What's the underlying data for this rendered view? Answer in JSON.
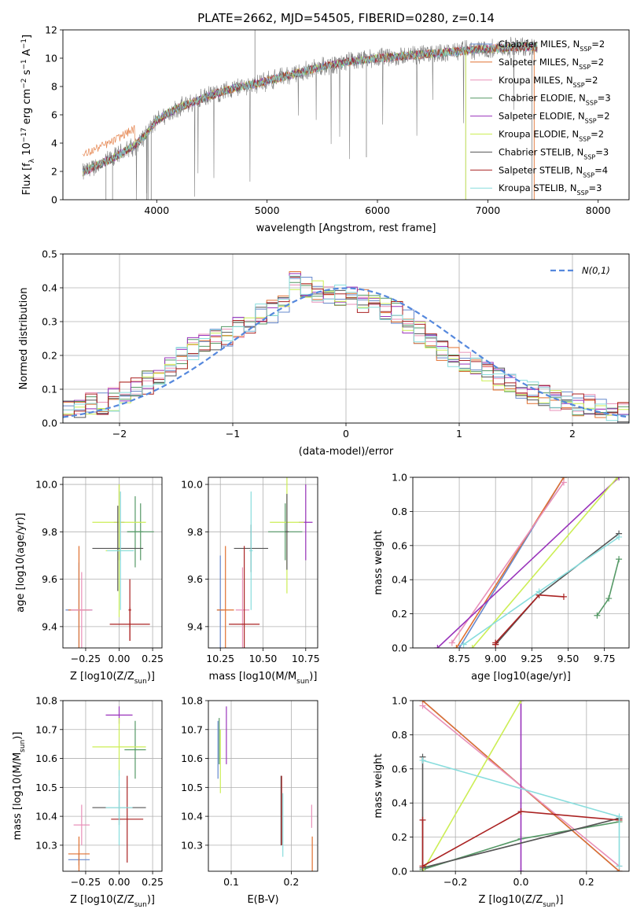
{
  "figure_title": "PLATE=2662, MJD=54505, FIBERID=0280, z=0.14",
  "model_colors": [
    "#6688cc",
    "#e07030",
    "#e890b8",
    "#559966",
    "#9933bb",
    "#ccee55",
    "#555555",
    "#aa2222",
    "#88dddd"
  ],
  "legend_labels": [
    "Chabrier MILES, N_SSP=2",
    "Salpeter MILES, N_SSP=2",
    "Kroupa MILES, N_SSP=2",
    "Chabrier ELODIE, N_SSP=3",
    "Salpeter ELODIE, N_SSP=2",
    "Kroupa ELODIE, N_SSP=2",
    "Chabrier STELIB, N_SSP=3",
    "Salpeter STELIB, N_SSP=4",
    "Kroupa STELIB, N_SSP=3"
  ],
  "chart_data": [
    {
      "id": "spectrum",
      "type": "line",
      "xlabel": "wavelength [Angstrom, rest frame]",
      "ylabel": "Flux [f_λ 10^-17 erg cm^-2 s^-1 A^-1]",
      "xlim": [
        3150,
        8280
      ],
      "ylim": [
        0,
        12
      ],
      "xticks": [
        4000,
        5000,
        6000,
        7000,
        8000
      ],
      "yticks": [
        0,
        2,
        4,
        6,
        8,
        10,
        12
      ],
      "grid": false,
      "legend": "upper right",
      "data_color": "#808080",
      "continuum_x": [
        3330,
        3450,
        3600,
        3700,
        3800,
        3900,
        4000,
        4100,
        4200,
        4300,
        4500,
        4700,
        4900,
        5100,
        5300,
        5500,
        5700,
        6000,
        6300,
        6600,
        6900,
        7100,
        7300,
        7450
      ],
      "continuum_y": [
        1.9,
        2.4,
        2.9,
        3.4,
        3.8,
        4.6,
        5.6,
        6.1,
        6.5,
        6.8,
        7.4,
        7.9,
        8.2,
        8.6,
        9.0,
        9.4,
        9.7,
        10.0,
        10.2,
        10.4,
        10.6,
        10.7,
        10.8,
        10.8
      ]
    },
    {
      "id": "residual-histogram",
      "type": "histogram",
      "xlabel": "(data-model)/error",
      "ylabel": "Normed distribution",
      "xlim": [
        -2.5,
        2.5
      ],
      "ylim": [
        0,
        0.5
      ],
      "xticks": [
        -2,
        -1,
        0,
        1,
        2
      ],
      "yticks": [
        0.0,
        0.1,
        0.2,
        0.3,
        0.4,
        0.5
      ],
      "grid": true,
      "legend": "upper right",
      "reference_curve": {
        "name": "N(0,1)",
        "sigma": 1.0,
        "color": "#5588dd",
        "style": "dashed"
      },
      "bin_edges": [
        -2.5,
        -2.4,
        -2.3,
        -2.2,
        -2.1,
        -2.0,
        -1.9,
        -1.8,
        -1.7,
        -1.6,
        -1.5,
        -1.4,
        -1.3,
        -1.2,
        -1.1,
        -1.0,
        -0.9,
        -0.8,
        -0.7,
        -0.6,
        -0.5,
        -0.4,
        -0.3,
        -0.2,
        -0.1,
        0.0,
        0.1,
        0.2,
        0.3,
        0.4,
        0.5,
        0.6,
        0.7,
        0.8,
        0.9,
        1.0,
        1.1,
        1.2,
        1.3,
        1.4,
        1.5,
        1.6,
        1.7,
        1.8,
        1.9,
        2.0,
        2.1,
        2.2,
        2.3,
        2.4,
        2.5
      ],
      "base_density": [
        0.045,
        0.05,
        0.055,
        0.06,
        0.07,
        0.09,
        0.1,
        0.12,
        0.14,
        0.17,
        0.19,
        0.22,
        0.24,
        0.25,
        0.26,
        0.28,
        0.3,
        0.32,
        0.33,
        0.35,
        0.42,
        0.4,
        0.39,
        0.38,
        0.38,
        0.37,
        0.36,
        0.35,
        0.34,
        0.33,
        0.3,
        0.27,
        0.24,
        0.22,
        0.2,
        0.18,
        0.16,
        0.15,
        0.13,
        0.11,
        0.1,
        0.09,
        0.08,
        0.07,
        0.06,
        0.055,
        0.05,
        0.04,
        0.035,
        0.03
      ]
    },
    {
      "id": "age-vs-metallicity",
      "type": "errorbar",
      "xlabel": "Z [log10(Z/Z_sun)]",
      "ylabel": "age [log10(age/yr)]",
      "xlim": [
        -0.42,
        0.32
      ],
      "ylim": [
        9.31,
        10.03
      ],
      "xticks": [
        -0.25,
        0.0,
        0.25
      ],
      "yticks": [
        9.4,
        9.6,
        9.8,
        10.0
      ],
      "grid": true,
      "points": [
        {
          "model": 0,
          "x": -0.3,
          "y": 9.47,
          "xerr": 0.1,
          "yerr": 0.2
        },
        {
          "model": 1,
          "x": -0.3,
          "y": 9.47,
          "xerr": 0.08,
          "yerr": 0.27
        },
        {
          "model": 2,
          "x": -0.28,
          "y": 9.47,
          "xerr": 0.08,
          "yerr": 0.16
        },
        {
          "model": 3,
          "x": 0.16,
          "y": 9.8,
          "xerr": 0.1,
          "yerr": 0.12
        },
        {
          "model": 3,
          "x": 0.12,
          "y": 9.8,
          "xerr": 0.06,
          "yerr": 0.15
        },
        {
          "model": 4,
          "x": 0.0,
          "y": 9.84,
          "xerr": 0.04,
          "yerr": 0.16
        },
        {
          "model": 5,
          "x": 0.0,
          "y": 9.84,
          "xerr": 0.2,
          "yerr": 0.16
        },
        {
          "model": 5,
          "x": 0.0,
          "y": 9.72,
          "xerr": 0.1,
          "yerr": 0.28
        },
        {
          "model": 6,
          "x": -0.01,
          "y": 9.73,
          "xerr": 0.19,
          "yerr": 0.18
        },
        {
          "model": 7,
          "x": 0.08,
          "y": 9.41,
          "xerr": 0.15,
          "yerr": 0.07
        },
        {
          "model": 7,
          "x": 0.08,
          "y": 9.47,
          "xerr": 0.01,
          "yerr": 0.13
        },
        {
          "model": 8,
          "x": 0.01,
          "y": 9.72,
          "xerr": 0.1,
          "yerr": 0.25
        }
      ]
    },
    {
      "id": "age-vs-mass",
      "type": "errorbar",
      "xlabel": "mass [log10(M/M_sun)]",
      "ylabel": "",
      "xlim": [
        10.18,
        10.82
      ],
      "ylim": [
        9.31,
        10.03
      ],
      "xticks": [
        10.25,
        10.5,
        10.75
      ],
      "yticks": [
        9.4,
        9.6,
        9.8,
        10.0
      ],
      "grid": true,
      "points": [
        {
          "model": 0,
          "x": 10.25,
          "y": 9.47,
          "xerr": 0.02,
          "yerr": 0.23
        },
        {
          "model": 1,
          "x": 10.28,
          "y": 9.47,
          "xerr": 0.05,
          "yerr": 0.27
        },
        {
          "model": 2,
          "x": 10.38,
          "y": 9.47,
          "xerr": 0.04,
          "yerr": 0.18
        },
        {
          "model": 3,
          "x": 10.63,
          "y": 9.8,
          "xerr": 0.1,
          "yerr": 0.12
        },
        {
          "model": 4,
          "x": 10.75,
          "y": 9.84,
          "xerr": 0.04,
          "yerr": 0.16
        },
        {
          "model": 5,
          "x": 10.64,
          "y": 9.84,
          "xerr": 0.1,
          "yerr": 0.3
        },
        {
          "model": 6,
          "x": 10.43,
          "y": 9.73,
          "xerr": 0.1,
          "yerr": 0.1
        },
        {
          "model": 6,
          "x": 10.64,
          "y": 9.8,
          "xerr": 0.01,
          "yerr": 0.16
        },
        {
          "model": 7,
          "x": 10.39,
          "y": 9.41,
          "xerr": 0.09,
          "yerr": 0.33
        },
        {
          "model": 8,
          "x": 10.43,
          "y": 9.72,
          "xerr": 0.01,
          "yerr": 0.25
        }
      ]
    },
    {
      "id": "mass-weight-vs-age",
      "type": "line",
      "xlabel": "age [log10(age/yr)]",
      "ylabel": "mass weight",
      "xlim": [
        8.43,
        9.92
      ],
      "ylim": [
        0,
        1
      ],
      "xticks": [
        8.75,
        9.0,
        9.25,
        9.5,
        9.75
      ],
      "yticks": [
        0.0,
        0.2,
        0.4,
        0.6,
        0.8,
        1.0
      ],
      "grid": true,
      "series": [
        {
          "model": 0,
          "x": [
            8.75,
            9.47
          ],
          "y": [
            0.0,
            1.0
          ]
        },
        {
          "model": 1,
          "x": [
            8.73,
            9.47
          ],
          "y": [
            0.0,
            1.0
          ]
        },
        {
          "model": 2,
          "x": [
            8.7,
            9.47
          ],
          "y": [
            0.03,
            0.97
          ]
        },
        {
          "model": 3,
          "x": [
            9.7,
            9.78,
            9.85
          ],
          "y": [
            0.19,
            0.29,
            0.52
          ]
        },
        {
          "model": 4,
          "x": [
            8.6,
            9.85
          ],
          "y": [
            0.0,
            1.0
          ]
        },
        {
          "model": 5,
          "x": [
            8.84,
            9.84
          ],
          "y": [
            0.0,
            1.0
          ]
        },
        {
          "model": 6,
          "x": [
            9.0,
            9.3,
            9.85
          ],
          "y": [
            0.02,
            0.31,
            0.67
          ]
        },
        {
          "model": 7,
          "x": [
            9.0,
            9.0,
            9.3,
            9.47
          ],
          "y": [
            0.02,
            0.03,
            0.31,
            0.3
          ]
        },
        {
          "model": 8,
          "x": [
            8.78,
            9.3,
            9.85
          ],
          "y": [
            0.02,
            0.33,
            0.65
          ]
        }
      ]
    },
    {
      "id": "mass-vs-metallicity",
      "type": "errorbar",
      "xlabel": "Z [log10(Z/Z_sun)]",
      "ylabel": "mass [log10(M/M_sun)]",
      "xlim": [
        -0.42,
        0.32
      ],
      "ylim": [
        10.21,
        10.8
      ],
      "xticks": [
        -0.25,
        0.0,
        0.25
      ],
      "yticks": [
        10.3,
        10.4,
        10.5,
        10.6,
        10.7,
        10.8
      ],
      "grid": true,
      "points": [
        {
          "model": 0,
          "x": -0.3,
          "y": 10.25,
          "xerr": 0.08,
          "yerr": 0.02
        },
        {
          "model": 1,
          "x": -0.3,
          "y": 10.27,
          "xerr": 0.08,
          "yerr": 0.06
        },
        {
          "model": 2,
          "x": -0.28,
          "y": 10.37,
          "xerr": 0.06,
          "yerr": 0.07
        },
        {
          "model": 3,
          "x": 0.12,
          "y": 10.63,
          "xerr": 0.08,
          "yerr": 0.1
        },
        {
          "model": 4,
          "x": 0.0,
          "y": 10.75,
          "xerr": 0.1,
          "yerr": 0.03
        },
        {
          "model": 5,
          "x": 0.0,
          "y": 10.64,
          "xerr": 0.2,
          "yerr": 0.1
        },
        {
          "model": 6,
          "x": 0.0,
          "y": 10.43,
          "xerr": 0.2,
          "yerr": 0.06
        },
        {
          "model": 7,
          "x": 0.06,
          "y": 10.39,
          "xerr": 0.12,
          "yerr": 0.15
        },
        {
          "model": 8,
          "x": 0.0,
          "y": 10.43,
          "xerr": 0.1,
          "yerr": 0.13
        }
      ]
    },
    {
      "id": "mass-vs-extinction",
      "type": "errorbar",
      "xlabel": "E(B-V)",
      "ylabel": "",
      "xlim": [
        0.062,
        0.244
      ],
      "ylim": [
        10.21,
        10.8
      ],
      "xticks": [
        0.1,
        0.2
      ],
      "yticks": [
        10.3,
        10.4,
        10.5,
        10.6,
        10.7,
        10.8
      ],
      "grid": true,
      "points": [
        {
          "model": 0,
          "x": 0.078,
          "y": 10.63,
          "xerr": 0.0,
          "yerr": 0.1
        },
        {
          "model": 1,
          "x": 0.235,
          "y": 10.27,
          "xerr": 0.0,
          "yerr": 0.06
        },
        {
          "model": 2,
          "x": 0.234,
          "y": 10.4,
          "xerr": 0.0,
          "yerr": 0.04
        },
        {
          "model": 3,
          "x": 0.08,
          "y": 10.66,
          "xerr": 0.0,
          "yerr": 0.08
        },
        {
          "model": 4,
          "x": 0.092,
          "y": 10.68,
          "xerr": 0.0,
          "yerr": 0.1
        },
        {
          "model": 5,
          "x": 0.082,
          "y": 10.59,
          "xerr": 0.0,
          "yerr": 0.11
        },
        {
          "model": 6,
          "x": 0.183,
          "y": 10.42,
          "xerr": 0.0,
          "yerr": 0.12
        },
        {
          "model": 7,
          "x": 0.184,
          "y": 10.42,
          "xerr": 0.0,
          "yerr": 0.12
        },
        {
          "model": 8,
          "x": 0.186,
          "y": 10.37,
          "xerr": 0.0,
          "yerr": 0.11
        }
      ]
    },
    {
      "id": "mass-weight-vs-metallicity",
      "type": "line",
      "xlabel": "Z [log10(Z/Z_sun)]",
      "ylabel": "mass weight",
      "xlim": [
        -0.33,
        0.33
      ],
      "ylim": [
        0,
        1
      ],
      "xticks": [
        -0.2,
        0.0,
        0.2
      ],
      "yticks": [
        0.0,
        0.2,
        0.4,
        0.6,
        0.8,
        1.0
      ],
      "grid": true,
      "series": [
        {
          "model": 0,
          "x": [
            -0.3,
            0.3
          ],
          "y": [
            1.0,
            0.0
          ]
        },
        {
          "model": 1,
          "x": [
            -0.3,
            0.3
          ],
          "y": [
            1.0,
            0.0
          ]
        },
        {
          "model": 2,
          "x": [
            -0.3,
            0.3
          ],
          "y": [
            0.97,
            0.03
          ]
        },
        {
          "model": 3,
          "x": [
            -0.3,
            0.0,
            0.3
          ],
          "y": [
            0.01,
            0.19,
            0.29
          ]
        },
        {
          "model": 4,
          "x": [
            0.0,
            0.0
          ],
          "y": [
            0.0,
            1.0
          ]
        },
        {
          "model": 5,
          "x": [
            -0.3,
            0.0
          ],
          "y": [
            0.0,
            1.0
          ]
        },
        {
          "model": 6,
          "x": [
            -0.3,
            -0.3,
            0.3
          ],
          "y": [
            0.67,
            0.02,
            0.31
          ]
        },
        {
          "model": 7,
          "x": [
            -0.3,
            -0.3,
            0.0,
            0.3
          ],
          "y": [
            0.3,
            0.03,
            0.35,
            0.3
          ]
        },
        {
          "model": 8,
          "x": [
            -0.3,
            0.3,
            0.3
          ],
          "y": [
            0.65,
            0.32,
            0.03
          ]
        }
      ]
    }
  ]
}
